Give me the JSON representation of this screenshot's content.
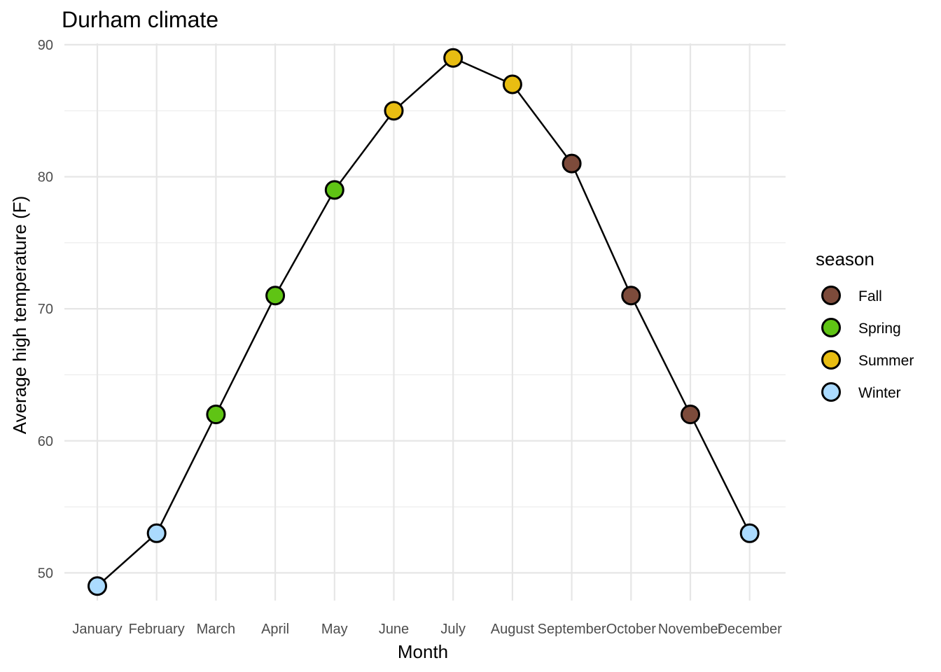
{
  "chart_data": {
    "type": "line",
    "title": "Durham climate",
    "xlabel": "Month",
    "ylabel": "Average high temperature (F)",
    "categories": [
      "January",
      "February",
      "March",
      "April",
      "May",
      "June",
      "July",
      "August",
      "September",
      "October",
      "November",
      "December"
    ],
    "values": [
      49,
      53,
      62,
      71,
      79,
      85,
      89,
      87,
      81,
      71,
      62,
      53
    ],
    "season": [
      "Winter",
      "Winter",
      "Spring",
      "Spring",
      "Spring",
      "Summer",
      "Summer",
      "Summer",
      "Fall",
      "Fall",
      "Fall",
      "Winter"
    ],
    "yticks": [
      50,
      60,
      70,
      80,
      90
    ],
    "ylim": [
      47.9,
      90.1
    ],
    "grid": true,
    "line_color": "#000000",
    "legend": {
      "title": "season",
      "placement": "right",
      "entries": [
        {
          "label": "Fall",
          "color": "#7d4b3b"
        },
        {
          "label": "Spring",
          "color": "#5fc414"
        },
        {
          "label": "Summer",
          "color": "#e8bd12"
        },
        {
          "label": "Winter",
          "color": "#abdbff"
        }
      ]
    }
  }
}
